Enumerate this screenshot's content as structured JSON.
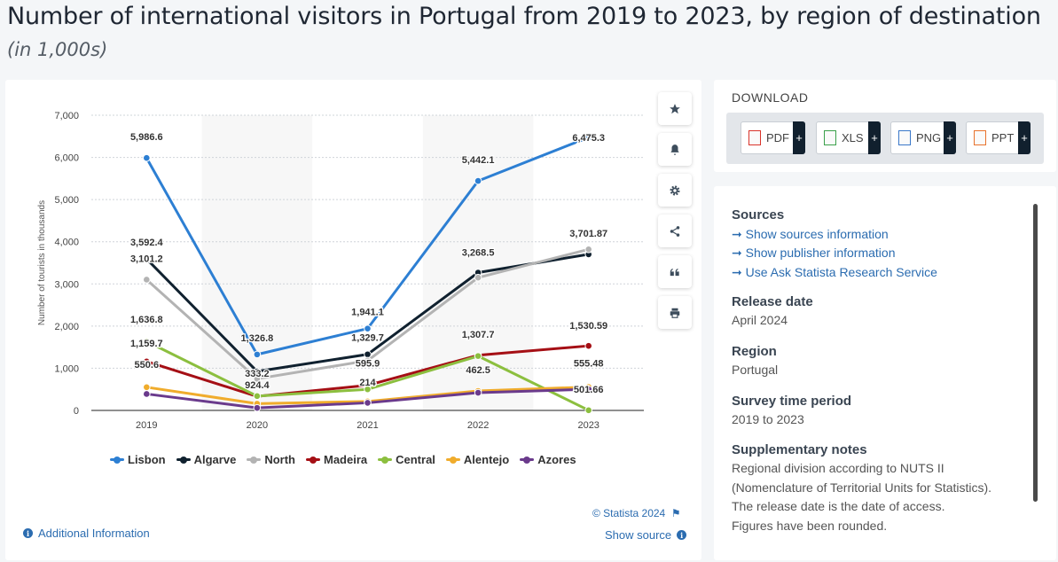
{
  "header": {
    "title": "Number of international visitors in Portugal from 2019 to 2023, by region of destination",
    "subtitle": "(in 1,000s)"
  },
  "chart_data": {
    "type": "line",
    "title": "",
    "xlabel": "",
    "ylabel": "Number of tourists in thousands",
    "x": [
      "2019",
      "2020",
      "2021",
      "2022",
      "2023"
    ],
    "y_ticks": [
      "0",
      "1,000",
      "2,000",
      "3,000",
      "4,000",
      "5,000",
      "6,000",
      "7,000"
    ],
    "ylim": [
      0,
      7000
    ],
    "grid": true,
    "legend_position": "bottom",
    "series": [
      {
        "name": "Lisbon",
        "color": "#2d7fd3",
        "values": [
          5986.6,
          1326.8,
          1941.1,
          5442.1,
          6475.3
        ]
      },
      {
        "name": "Algarve",
        "color": "#10212f",
        "values": [
          3592.4,
          924.4,
          1329.7,
          3268.5,
          3701.87
        ]
      },
      {
        "name": "North",
        "color": "#b3b3b3",
        "values": [
          3101.2,
          750,
          1180,
          3150,
          3820
        ]
      },
      {
        "name": "Madeira",
        "color": "#a50f15",
        "values": [
          1159.7,
          333.2,
          595.9,
          1307.7,
          1530.59
        ]
      },
      {
        "name": "Central",
        "color": "#8cbf3f",
        "values": [
          1636.8,
          340,
          500,
          1290,
          4
        ]
      },
      {
        "name": "Alentejo",
        "color": "#f0ac2c",
        "values": [
          550.6,
          160,
          214,
          462.5,
          555.48
        ]
      },
      {
        "name": "Azores",
        "color": "#6a3a8c",
        "values": [
          390,
          60,
          180,
          420,
          501.66
        ]
      }
    ],
    "data_labels": [
      {
        "text": "5,986.6",
        "x": 0,
        "y": 5986.6,
        "dy": -20
      },
      {
        "text": "1,326.8",
        "x": 1,
        "y": 1326.8,
        "dy": -15
      },
      {
        "text": "1,941.1",
        "x": 2,
        "y": 1941.1,
        "dy": -15
      },
      {
        "text": "5,442.1",
        "x": 3,
        "y": 5442.1,
        "dy": -20
      },
      {
        "text": "6,475.3",
        "x": 4,
        "y": 6475.3,
        "dy": 4
      },
      {
        "text": "3,592.4",
        "x": 0,
        "y": 3592.4,
        "dy": -15
      },
      {
        "text": "924.4",
        "x": 1,
        "y": 924.4,
        "dy": 19
      },
      {
        "text": "1,329.7",
        "x": 2,
        "y": 1329.7,
        "dy": -15
      },
      {
        "text": "3,268.5",
        "x": 3,
        "y": 3268.5,
        "dy": -19
      },
      {
        "text": "3,701.87",
        "x": 4,
        "y": 3701.87,
        "dy": -20
      },
      {
        "text": "3,101.2",
        "x": 0,
        "y": 3101.2,
        "dy": -20
      },
      {
        "text": "333.2",
        "x": 1,
        "y": 333.2,
        "dy": -22
      },
      {
        "text": "1,159.7",
        "x": 0,
        "y": 1159.7,
        "dy": -17
      },
      {
        "text": "595.9",
        "x": 2,
        "y": 595.9,
        "dy": -21
      },
      {
        "text": "1,307.7",
        "x": 3,
        "y": 1307.7,
        "dy": -20
      },
      {
        "text": "1,530.59",
        "x": 4,
        "y": 1530.59,
        "dy": -19
      },
      {
        "text": "1,636.8",
        "x": 0,
        "y": 1636.8,
        "dy": -21
      },
      {
        "text": "550.6",
        "x": 0,
        "y": 550.6,
        "dy": -22
      },
      {
        "text": "214",
        "x": 2,
        "y": 214,
        "dy": -18
      },
      {
        "text": "462.5",
        "x": 3,
        "y": 462.5,
        "dy": -20
      },
      {
        "text": "555.48",
        "x": 4,
        "y": 555.48,
        "dy": -23
      },
      {
        "text": "501.66",
        "x": 4,
        "y": 501.66,
        "dy": 4
      }
    ]
  },
  "chart_footer": {
    "credit": "© Statista 2024",
    "show_source": "Show source",
    "additional_info": "Additional Information"
  },
  "toolbar": {
    "icons": [
      "star-icon",
      "bell-icon",
      "gear-icon",
      "share-icon",
      "quote-icon",
      "print-icon"
    ]
  },
  "download": {
    "title": "DOWNLOAD",
    "buttons": [
      {
        "label": "PDF",
        "color": "#d9342b"
      },
      {
        "label": "XLS",
        "color": "#3aa04a"
      },
      {
        "label": "PNG",
        "color": "#3a78c9"
      },
      {
        "label": "PPT",
        "color": "#e8722c"
      }
    ],
    "plus": "+"
  },
  "info": {
    "sources_head": "Sources",
    "links": [
      "Show sources information",
      "Show publisher information",
      "Use Ask Statista Research Service"
    ],
    "release_head": "Release date",
    "release_value": "April 2024",
    "region_head": "Region",
    "region_value": "Portugal",
    "survey_head": "Survey time period",
    "survey_value": "2019 to 2023",
    "notes_head": "Supplementary notes",
    "notes_lines": [
      "Regional division according to NUTS II",
      "(Nomenclature of Territorial Units for Statistics).",
      "The release date is the date of access.",
      "Figures have been rounded."
    ]
  }
}
